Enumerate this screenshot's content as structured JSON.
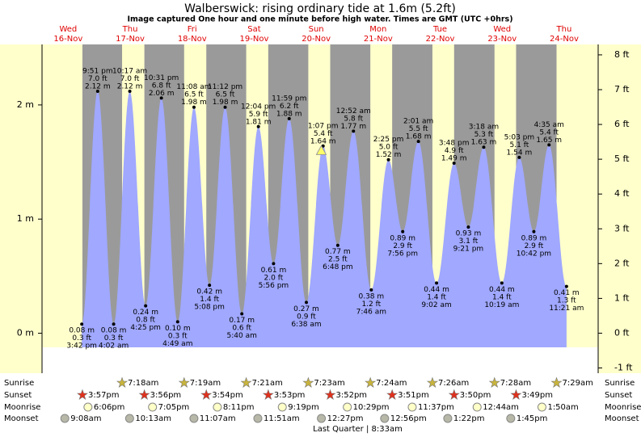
{
  "chart_data": {
    "type": "area",
    "title": "Walberswick: rising  ordinary tide at 1.6m (5.2ft)",
    "subtitle": "Image captured One hour and one minute before high water. Times are GMT (UTC +0hrs)",
    "color": "#a0a8ff",
    "ylim": [
      -0.35,
      2.53
    ],
    "yticks": [
      {
        "value": 0,
        "label": "0 m"
      },
      {
        "value": 1,
        "label": "1 m"
      },
      {
        "value": 2,
        "label": "2 m"
      }
    ],
    "y2lim": [
      -1.15,
      8.3
    ],
    "y2ticks": [
      {
        "value": -1,
        "label": "-1 ft"
      },
      {
        "value": 0,
        "label": "0 ft"
      },
      {
        "value": 1,
        "label": "1 ft"
      },
      {
        "value": 2,
        "label": "2 ft"
      },
      {
        "value": 3,
        "label": "3 ft"
      },
      {
        "value": 4,
        "label": "4 ft"
      },
      {
        "value": 5,
        "label": "5 ft"
      },
      {
        "value": 6,
        "label": "6 ft"
      },
      {
        "value": 7,
        "label": "7 ft"
      },
      {
        "value": 8,
        "label": "8 ft"
      }
    ],
    "current_height": 1.6,
    "row_labels": [
      "Sunrise",
      "Sunset",
      "Moonrise",
      "Moonset"
    ],
    "days": [
      {
        "weekday": "Wed",
        "date": "16-Nov",
        "sunset": "3:57pm",
        "moonrise": "6:06pm",
        "moonset": "9:08am",
        "tides": [
          {
            "time": "3:42 pm",
            "height": 0.08,
            "height_label": "0.08 m",
            "feet_label": "0.3 ft"
          },
          {
            "time": "9:51 pm",
            "height": 2.12,
            "height_label": "2.12 m",
            "feet_label": "7.0 ft"
          }
        ]
      },
      {
        "weekday": "Thu",
        "date": "17-Nov",
        "sunrise": "7:18am",
        "sunset": "3:56pm",
        "moonrise": "7:05pm",
        "moonset": "10:13am",
        "tides": [
          {
            "time": "4:02 am",
            "height": 0.08,
            "height_label": "0.08 m",
            "feet_label": "0.3 ft"
          },
          {
            "time": "10:17 am",
            "height": 2.12,
            "height_label": "2.12 m",
            "feet_label": "7.0 ft"
          },
          {
            "time": "4:25 pm",
            "height": 0.24,
            "height_label": "0.24 m",
            "feet_label": "0.8 ft"
          },
          {
            "time": "10:31 pm",
            "height": 2.06,
            "height_label": "2.06 m",
            "feet_label": "6.8 ft"
          }
        ]
      },
      {
        "weekday": "Fri",
        "date": "18-Nov",
        "sunrise": "7:19am",
        "sunset": "3:54pm",
        "moonrise": "8:11pm",
        "moonset": "11:07am",
        "tides": [
          {
            "time": "4:49 am",
            "height": 0.1,
            "height_label": "0.10 m",
            "feet_label": "0.3 ft"
          },
          {
            "time": "11:08 am",
            "height": 1.98,
            "height_label": "1.98 m",
            "feet_label": "6.5 ft"
          },
          {
            "time": "5:08 pm",
            "height": 0.42,
            "height_label": "0.42 m",
            "feet_label": "1.4 ft"
          },
          {
            "time": "11:12 pm",
            "height": 1.98,
            "height_label": "1.98 m",
            "feet_label": "6.5 ft"
          }
        ]
      },
      {
        "weekday": "Sat",
        "date": "19-Nov",
        "sunrise": "7:21am",
        "sunset": "3:53pm",
        "moonrise": "9:19pm",
        "moonset": "11:51am",
        "tides": [
          {
            "time": "5:40 am",
            "height": 0.17,
            "height_label": "0.17 m",
            "feet_label": "0.6 ft"
          },
          {
            "time": "12:04 pm",
            "height": 1.81,
            "height_label": "1.81 m",
            "feet_label": "5.9 ft"
          },
          {
            "time": "5:56 pm",
            "height": 0.61,
            "height_label": "0.61 m",
            "feet_label": "2.0 ft"
          },
          {
            "time": "11:59 pm",
            "height": 1.88,
            "height_label": "1.88 m",
            "feet_label": "6.2 ft"
          }
        ]
      },
      {
        "weekday": "Sun",
        "date": "20-Nov",
        "sunrise": "7:23am",
        "sunset": "3:52pm",
        "moonrise": "10:29pm",
        "moonset": "12:27pm",
        "tides": [
          {
            "time": "6:38 am",
            "height": 0.27,
            "height_label": "0.27 m",
            "feet_label": "0.9 ft"
          },
          {
            "time": "1:07 pm",
            "height": 1.64,
            "height_label": "1.64 m",
            "feet_label": "5.4 ft"
          },
          {
            "time": "6:48 pm",
            "height": 0.77,
            "height_label": "0.77 m",
            "feet_label": "2.5 ft"
          }
        ]
      },
      {
        "weekday": "Mon",
        "date": "21-Nov",
        "sunrise": "7:24am",
        "sunset": "3:51pm",
        "moonrise": "11:37pm",
        "moonset": "12:56pm",
        "moon_phase": "Last Quarter | 8:33am",
        "tides": [
          {
            "time": "12:52 am",
            "height": 1.77,
            "height_label": "1.77 m",
            "feet_label": "5.8 ft"
          },
          {
            "time": "7:46 am",
            "height": 0.38,
            "height_label": "0.38 m",
            "feet_label": "1.2 ft"
          },
          {
            "time": "2:25 pm",
            "height": 1.52,
            "height_label": "1.52 m",
            "feet_label": "5.0 ft"
          },
          {
            "time": "7:56 pm",
            "height": 0.89,
            "height_label": "0.89 m",
            "feet_label": "2.9 ft"
          }
        ]
      },
      {
        "weekday": "Tue",
        "date": "22-Nov",
        "sunrise": "7:26am",
        "sunset": "3:50pm",
        "moonset": "1:22pm",
        "tides": [
          {
            "time": "2:01 am",
            "height": 1.68,
            "height_label": "1.68 m",
            "feet_label": "5.5 ft"
          },
          {
            "time": "9:02 am",
            "height": 0.44,
            "height_label": "0.44 m",
            "feet_label": "1.4 ft"
          },
          {
            "time": "3:48 pm",
            "height": 1.49,
            "height_label": "1.49 m",
            "feet_label": "4.9 ft"
          },
          {
            "time": "9:21 pm",
            "height": 0.93,
            "height_label": "0.93 m",
            "feet_label": "3.1 ft"
          }
        ]
      },
      {
        "weekday": "Wed",
        "date": "23-Nov",
        "sunrise": "7:28am",
        "sunset": "3:49pm",
        "moonrise": "12:44am",
        "moonset": "1:45pm",
        "tides": [
          {
            "time": "3:18 am",
            "height": 1.63,
            "height_label": "1.63 m",
            "feet_label": "5.3 ft"
          },
          {
            "time": "10:19 am",
            "height": 0.44,
            "height_label": "0.44 m",
            "feet_label": "1.4 ft"
          },
          {
            "time": "5:03 pm",
            "height": 1.54,
            "height_label": "1.54 m",
            "feet_label": "5.1 ft"
          },
          {
            "time": "10:42 pm",
            "height": 0.89,
            "height_label": "0.89 m",
            "feet_label": "2.9 ft"
          }
        ]
      },
      {
        "weekday": "Thu",
        "date": "24-Nov",
        "sunrise": "7:29am",
        "moonrise": "1:50am",
        "tides": [
          {
            "time": "4:35 am",
            "height": 1.65,
            "height_label": "1.65 m",
            "feet_label": "5.4 ft"
          },
          {
            "time": "11:21 am",
            "height": 0.41,
            "height_label": "0.41 m",
            "feet_label": "1.3 ft"
          }
        ]
      }
    ]
  }
}
